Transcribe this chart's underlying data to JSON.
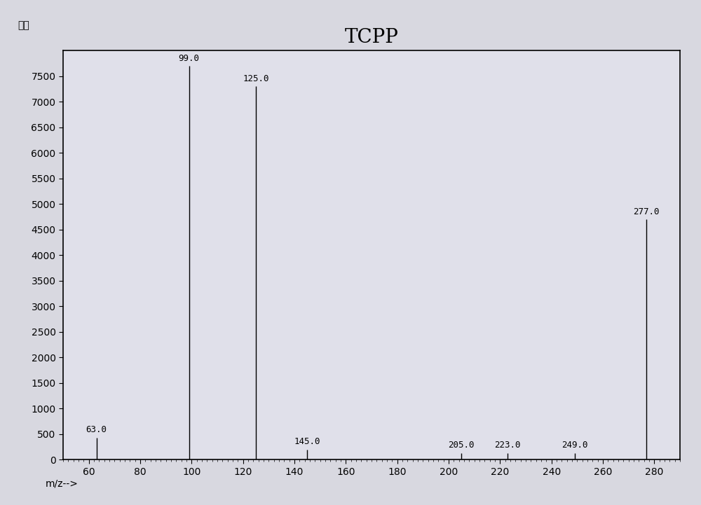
{
  "title": "TCPP",
  "xlabel": "m/z-->",
  "ylabel": "强度",
  "xlim": [
    50,
    290
  ],
  "ylim": [
    0,
    8000
  ],
  "yticks": [
    0,
    500,
    1000,
    1500,
    2000,
    2500,
    3000,
    3500,
    4000,
    4500,
    5000,
    5500,
    6000,
    6500,
    7000,
    7500
  ],
  "xticks": [
    60,
    80,
    100,
    120,
    140,
    160,
    180,
    200,
    220,
    240,
    260,
    280
  ],
  "peaks": [
    {
      "mz": 63.0,
      "intensity": 430,
      "label": "63.0"
    },
    {
      "mz": 99.0,
      "intensity": 7700,
      "label": "99.0"
    },
    {
      "mz": 125.0,
      "intensity": 7300,
      "label": "125.0"
    },
    {
      "mz": 145.0,
      "intensity": 200,
      "label": "145.0"
    },
    {
      "mz": 205.0,
      "intensity": 130,
      "label": "205.0"
    },
    {
      "mz": 223.0,
      "intensity": 130,
      "label": "223.0"
    },
    {
      "mz": 249.0,
      "intensity": 130,
      "label": "249.0"
    },
    {
      "mz": 277.0,
      "intensity": 4700,
      "label": "277.0"
    }
  ],
  "outer_bg_color": "#d8d8e0",
  "inner_bg_color": "#e0e0ea",
  "border_color": "#000000",
  "line_color": "#000000",
  "title_fontsize": 20,
  "axis_fontsize": 10,
  "label_fontsize": 9,
  "ylabel_fontsize": 10
}
